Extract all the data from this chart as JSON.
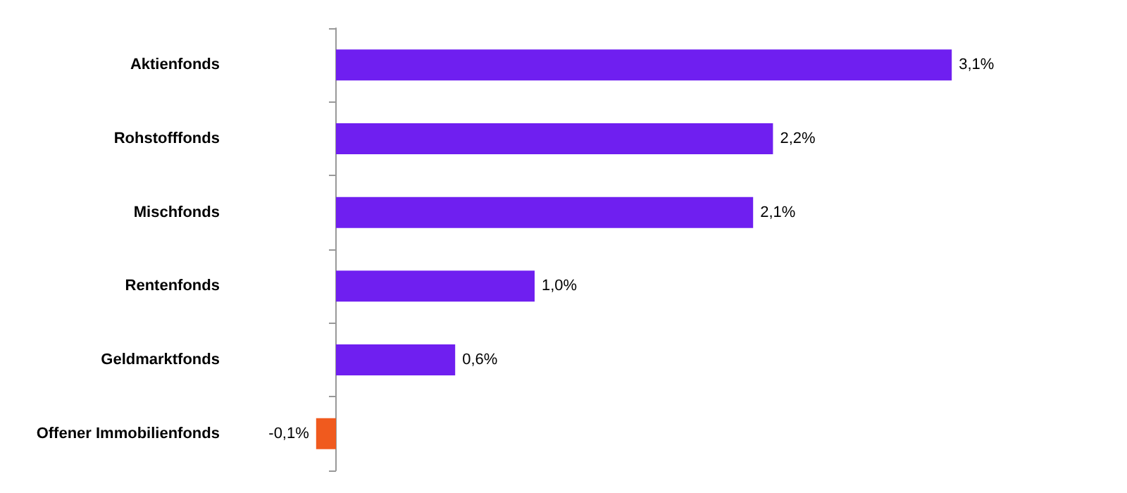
{
  "chart_data": {
    "type": "bar",
    "orientation": "horizontal",
    "categories": [
      "Aktienfonds",
      "Rohstofffonds",
      "Mischfonds",
      "Rentenfonds",
      "Geldmarktfonds",
      "Offener Immobilienfonds"
    ],
    "values": [
      3.1,
      2.2,
      2.1,
      1.0,
      0.6,
      -0.1
    ],
    "colors": [
      "#6f1ff0",
      "#6f1ff0",
      "#6f1ff0",
      "#6f1ff0",
      "#6f1ff0",
      "#f05a1e"
    ],
    "value_labels": [
      "3,1%",
      "2,2%",
      "2,1%",
      "1,0%",
      "0,6%",
      "-0,1%"
    ],
    "grid": false
  }
}
